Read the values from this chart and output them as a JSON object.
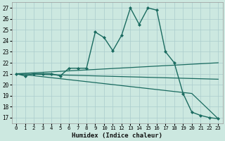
{
  "xlabel": "Humidex (Indice chaleur)",
  "background_color": "#cce8e0",
  "grid_color": "#aacccc",
  "line_color": "#1a6b60",
  "xlim": [
    -0.5,
    23.5
  ],
  "ylim": [
    16.5,
    27.5
  ],
  "yticks": [
    17,
    18,
    19,
    20,
    21,
    22,
    23,
    24,
    25,
    26,
    27
  ],
  "xticks": [
    0,
    1,
    2,
    3,
    4,
    5,
    6,
    7,
    8,
    9,
    10,
    11,
    12,
    13,
    14,
    15,
    16,
    17,
    18,
    19,
    20,
    21,
    22,
    23
  ],
  "series": [
    {
      "x": [
        0,
        1,
        2,
        3,
        4,
        5,
        6,
        7,
        8,
        9,
        10,
        11,
        12,
        13,
        14,
        15,
        16,
        17,
        18,
        19,
        20,
        21,
        22,
        23
      ],
      "y": [
        21.0,
        20.8,
        21.0,
        21.0,
        21.0,
        20.8,
        21.5,
        21.5,
        21.5,
        24.8,
        24.3,
        23.1,
        24.5,
        27.0,
        25.5,
        27.0,
        26.8,
        23.0,
        22.0,
        19.2,
        17.5,
        17.2,
        17.0,
        16.9
      ],
      "marker": "D",
      "markersize": 2.0,
      "linewidth": 1.0
    },
    {
      "x": [
        0,
        23
      ],
      "y": [
        21.0,
        22.0
      ],
      "marker": null,
      "linewidth": 0.9
    },
    {
      "x": [
        0,
        23
      ],
      "y": [
        21.0,
        20.5
      ],
      "marker": null,
      "linewidth": 0.9
    },
    {
      "x": [
        0,
        20,
        23
      ],
      "y": [
        21.0,
        19.2,
        16.9
      ],
      "marker": null,
      "linewidth": 0.9
    }
  ]
}
